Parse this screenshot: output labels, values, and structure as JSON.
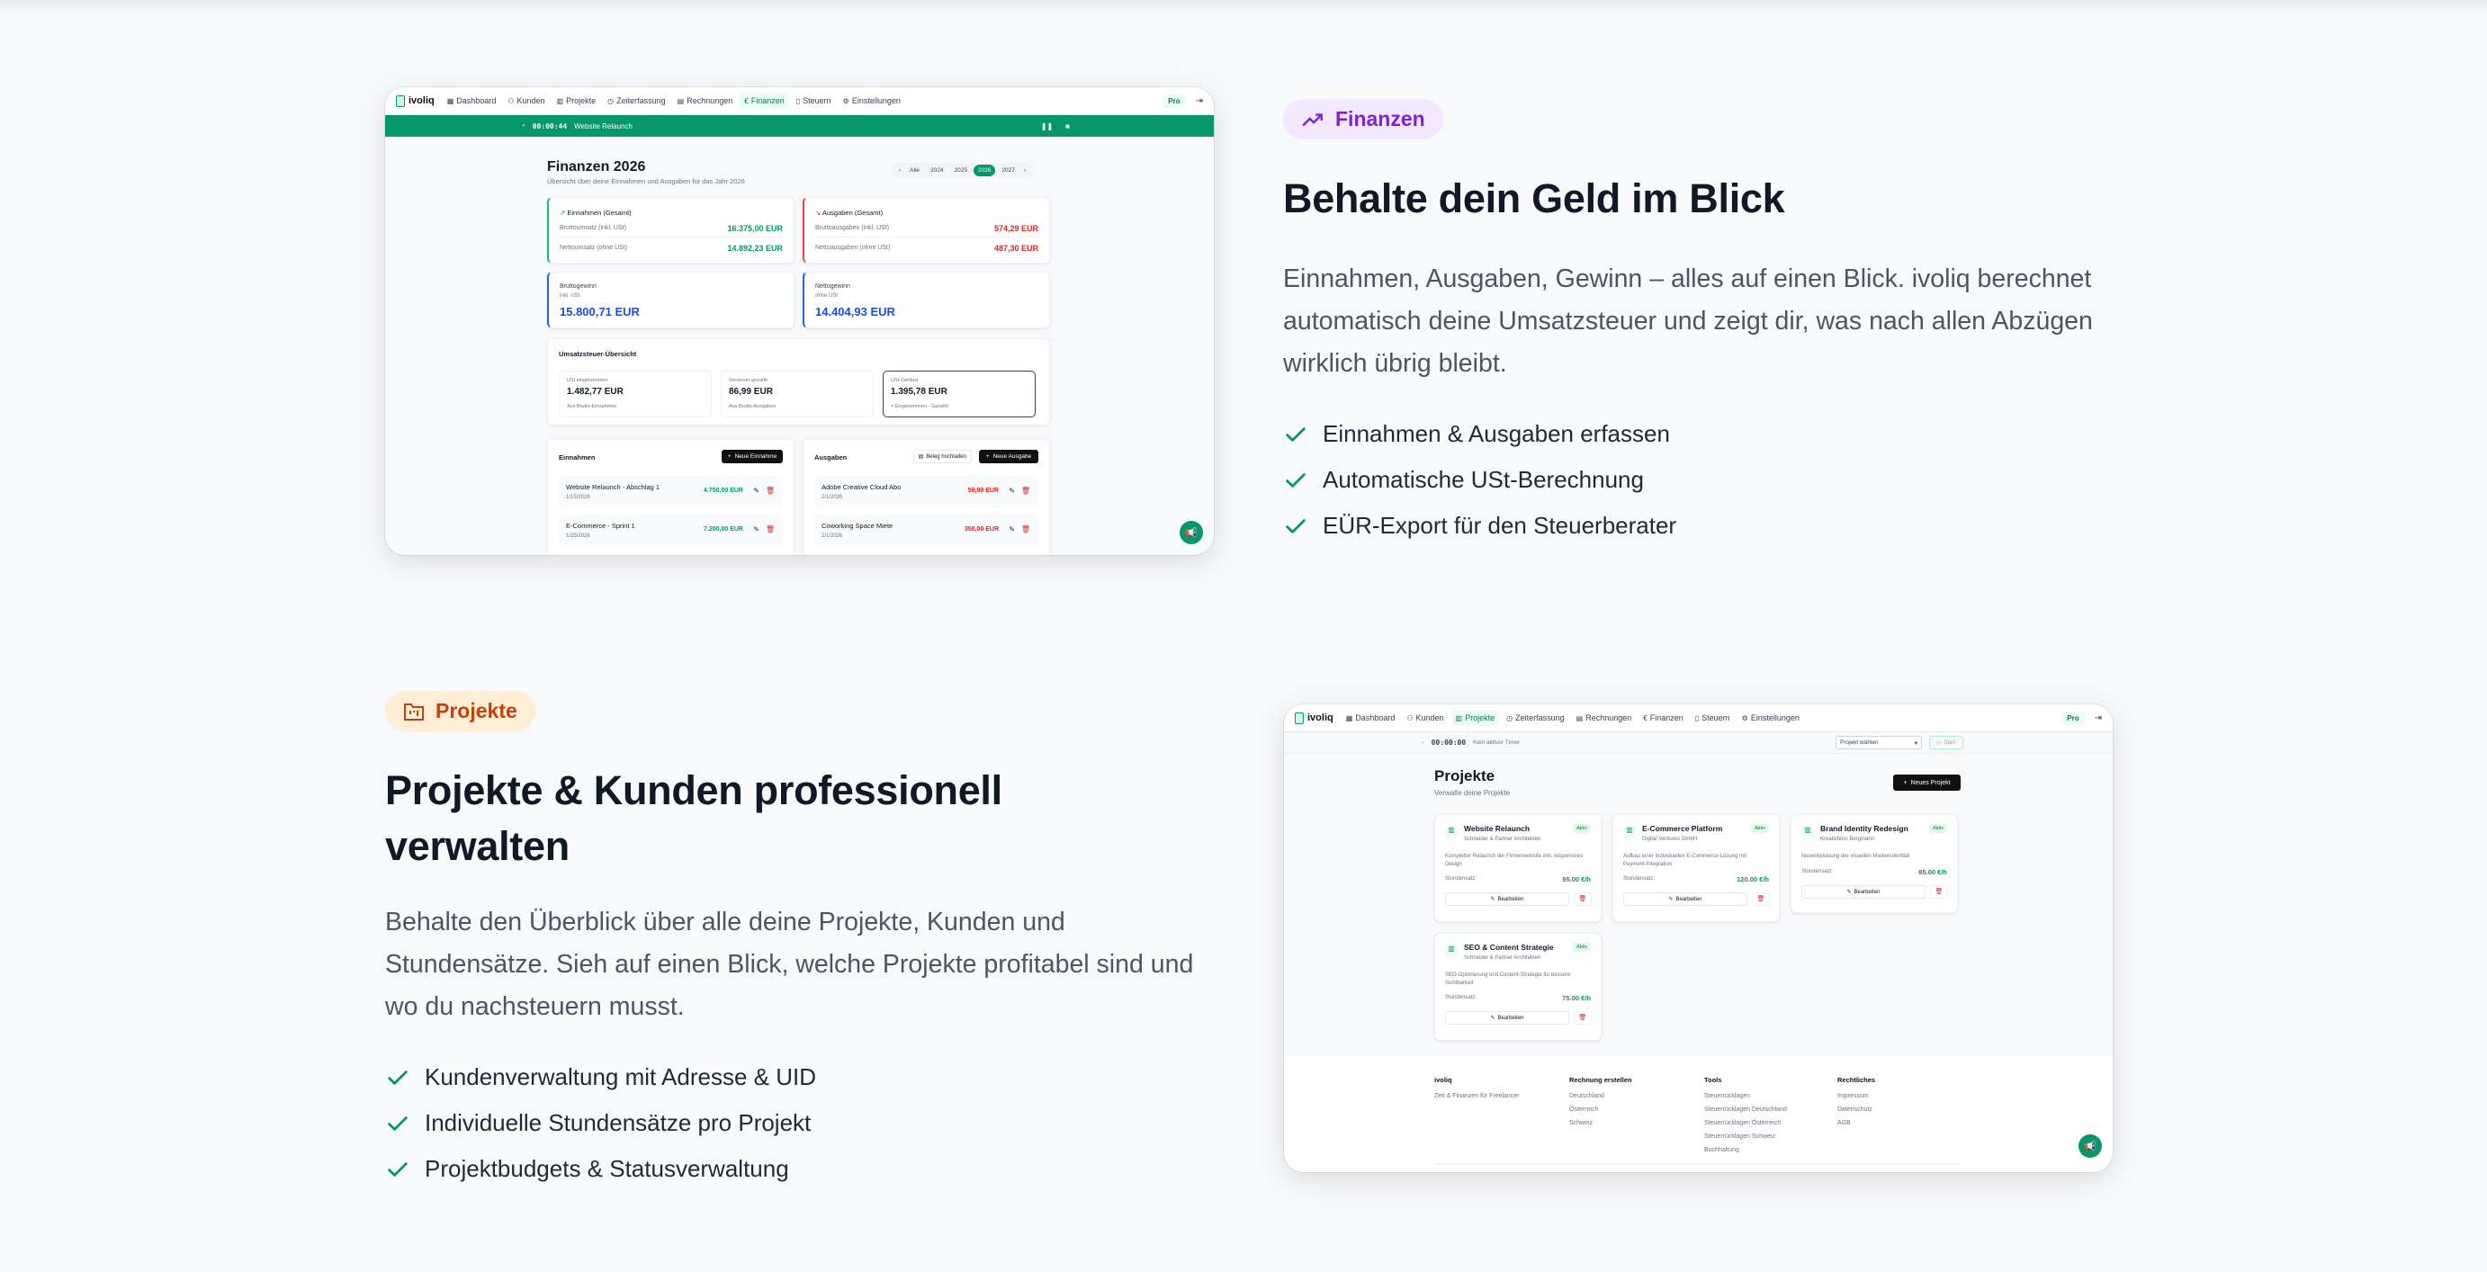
{
  "section_finanzen": {
    "badge": "Finanzen",
    "badge_icon": "trending-up-icon",
    "badge_color": "#7e22ce",
    "badge_bg": "#f3e8ff",
    "title": "Behalte dein Geld im Blick",
    "text": "Einnahmen, Ausgaben, Gewinn – alles auf einen Blick. ivoliq berechnet automatisch deine Umsatzsteuer und zeigt dir, was nach allen Abzügen wirklich übrig bleibt.",
    "features": [
      "Einnahmen & Ausgaben erfassen",
      "Automatische USt-Berechnung",
      "EÜR-Export für den Steuerberater"
    ]
  },
  "section_projekte": {
    "badge": "Projekte",
    "badge_icon": "folder-kanban-icon",
    "badge_color": "#c2410c",
    "badge_bg": "#ffedd5",
    "title": "Projekte & Kunden professionell verwalten",
    "text": "Behalte den Überblick über alle deine Projekte, Kunden und Stundensätze. Sieh auf einen Blick, welche Projekte profitabel sind und wo du nachsteuern musst.",
    "features": [
      "Kundenverwaltung mit Adresse & UID",
      "Individuelle Stundensätze pro Projekt",
      "Projektbudgets & Statusverwaltung"
    ]
  },
  "accent": "#059669",
  "app": {
    "logo": "ivoliq",
    "nav": [
      "Dashboard",
      "Kunden",
      "Projekte",
      "Zeiterfassung",
      "Rechnungen",
      "Finanzen",
      "Steuern",
      "Einstellungen"
    ],
    "pro": "Pro"
  },
  "finanzen_screen": {
    "timer": "00:00:44",
    "timer_project": "Website Relaunch",
    "title": "Finanzen 2026",
    "subtitle": "Übersicht über deine Einnahmen und Ausgaben für das Jahr 2026",
    "years": [
      "Alle",
      "2024",
      "2025",
      "2026",
      "2027"
    ],
    "active_year": "2026",
    "einnahmen": {
      "title": "Einnahmen (Gesamt)",
      "brutto_label": "Bruttoumsatz (inkl. USt)",
      "brutto": "16.375,00 EUR",
      "netto_label": "Nettoumsatz (ohne USt)",
      "netto": "14.892,23 EUR"
    },
    "ausgaben": {
      "title": "Ausgaben (Gesamt)",
      "brutto_label": "Bruttoausgaben (inkl. USt)",
      "brutto": "574,29 EUR",
      "netto_label": "Nettoausgaben (ohne USt)",
      "netto": "487,30 EUR"
    },
    "bruttogewinn": {
      "label": "Bruttogewinn",
      "sub": "inkl. USt",
      "value": "15.800,71 EUR"
    },
    "nettogewinn": {
      "label": "Nettogewinn",
      "sub": "ohne USt",
      "value": "14.404,93 EUR"
    },
    "ust": {
      "title": "Umsatzsteuer-Übersicht",
      "boxes": [
        {
          "label": "USt eingenommen",
          "value": "1.482,77 EUR",
          "sub": "Aus Brutto-Einnahmen"
        },
        {
          "label": "Vorsteuer gezahlt",
          "value": "86,99 EUR",
          "sub": "Aus Brutto-Ausgaben"
        },
        {
          "label": "USt-Zahllast",
          "value": "1.395,78 EUR",
          "sub": "= Eingenommen - Gezahlt"
        }
      ]
    },
    "income_list": {
      "title": "Einnahmen",
      "button": "Neue Einnahme",
      "items": [
        {
          "name": "Website Relaunch - Abschlag 1",
          "date": "1/15/2026",
          "amount": "4.750,00 EUR"
        },
        {
          "name": "E-Commerce - Sprint 1",
          "date": "1/25/2026",
          "amount": "7.200,00 EUR"
        }
      ]
    },
    "expense_list": {
      "title": "Ausgaben",
      "upload": "Beleg hochladen",
      "button": "Neue Ausgabe",
      "items": [
        {
          "name": "Adobe Creative Cloud Abo",
          "date": "2/1/2026",
          "amount": "59,99 EUR"
        },
        {
          "name": "Coworking Space Miete",
          "date": "2/1/2026",
          "amount": "350,00 EUR"
        }
      ]
    }
  },
  "projekte_screen": {
    "timer": "00:00:00",
    "timer_status": "Kein aktiver Timer",
    "select": "Projekt wählen",
    "start": "Start",
    "title": "Projekte",
    "subtitle": "Verwalte deine Projekte",
    "new_button": "Neues Projekt",
    "rate_label": "Stundensatz:",
    "edit": "Bearbeiten",
    "projects": [
      {
        "name": "Website Relaunch",
        "client": "Schneider & Partner Architekten",
        "status": "Aktiv",
        "desc": "Kompletter Relaunch der Firmenwebsite inkl. responsives Design",
        "rate": "95.00 €/h"
      },
      {
        "name": "E-Commerce Platform",
        "client": "Digital Ventures GmbH",
        "status": "Aktiv",
        "desc": "Aufbau einer individuellen E-Commerce-Lösung mit Payment-Integration",
        "rate": "120.00 €/h"
      },
      {
        "name": "Brand Identity Redesign",
        "client": "Kreativbüro Bergmann",
        "status": "Aktiv",
        "desc": "Neuentwicklung der visuellen Markenidentität",
        "rate": "85.00 €/h"
      },
      {
        "name": "SEO & Content Strategie",
        "client": "Schneider & Partner Architekten",
        "status": "Aktiv",
        "desc": "SEO-Optimierung und Content-Strategie für bessere Sichtbarkeit",
        "rate": "75.00 €/h"
      }
    ],
    "footer": [
      {
        "title": "ivoliq",
        "links": [
          "Zeit & Finanzen für Freelancer"
        ]
      },
      {
        "title": "Rechnung erstellen",
        "links": [
          "Deutschland",
          "Österreich",
          "Schweiz"
        ]
      },
      {
        "title": "Tools",
        "links": [
          "Steuerrücklagen",
          "Steuerrücklagen Deutschland",
          "Steuerrücklagen Österreich",
          "Steuerrücklagen Schweiz",
          "Buchhaltung"
        ]
      },
      {
        "title": "Rechtliches",
        "links": [
          "Impressum",
          "Datenschutz",
          "AGB"
        ]
      }
    ]
  }
}
